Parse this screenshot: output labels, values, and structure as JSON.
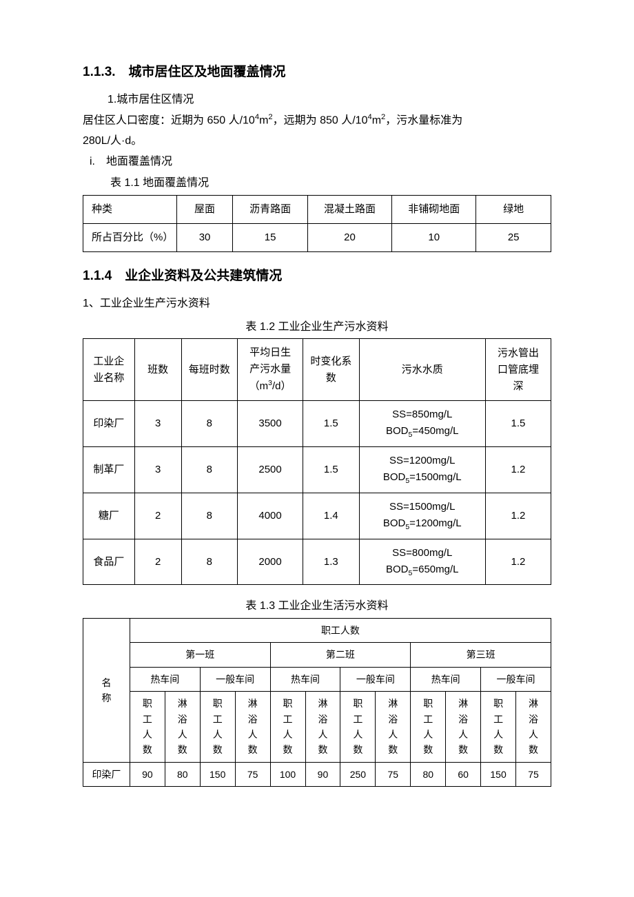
{
  "section113": {
    "heading": "1.1.3.　城市居住区及地面覆盖情况",
    "item1_label": "1.城市居住区情况",
    "density_line_a": "居住区人口密度：近期为 650 人/10",
    "density_sup1": "4",
    "density_unit1": "m",
    "density_sup2": "2",
    "density_line_b": "，远期为 850 人/10",
    "density_sup3": "4",
    "density_unit2": "m",
    "density_sup4": "2",
    "density_line_c": "，污水量标准为",
    "density_line2": "280L/人·d。",
    "item_i_label": "i.　地面覆盖情况",
    "table1_caption": "表 1.1  地面覆盖情况",
    "table1": {
      "header": [
        "种类",
        "屋面",
        "沥青路面",
        "混凝土路面",
        "非铺砌地面",
        "绿地"
      ],
      "row": [
        "所占百分比（%）",
        "30",
        "15",
        "20",
        "10",
        "25"
      ]
    }
  },
  "section114": {
    "heading": "1.1.4　业企业资料及公共建筑情况",
    "item1": "1、工业企业生产污水资料",
    "table2_caption": "表 1.2  工业企业生产污水资料",
    "table2": {
      "headers": {
        "c0a": "工业企",
        "c0b": "业名称",
        "c1": "班数",
        "c2": "每班时数",
        "c3a": "平均日生",
        "c3b": "产污水量",
        "c3c_a": "（m",
        "c3c_sup": "3",
        "c3c_b": "/d）",
        "c4a": "时变化系",
        "c4b": "数",
        "c5": "污水水质",
        "c6a": "污水管出",
        "c6b": "口管底埋",
        "c6c": "深"
      },
      "rows": [
        {
          "name": "印染厂",
          "shifts": "3",
          "hours": "8",
          "vol": "3500",
          "coef": "1.5",
          "q1": "SS=850mg/L",
          "q2a": "BOD",
          "q2sub": "5",
          "q2b": "=450mg/L",
          "depth": "1.5"
        },
        {
          "name": "制革厂",
          "shifts": "3",
          "hours": "8",
          "vol": "2500",
          "coef": "1.5",
          "q1": "SS=1200mg/L",
          "q2a": "BOD",
          "q2sub": "5",
          "q2b": "=1500mg/L",
          "depth": "1.2"
        },
        {
          "name": "糖厂",
          "shifts": "2",
          "hours": "8",
          "vol": "4000",
          "coef": "1.4",
          "q1": "SS=1500mg/L",
          "q2a": "BOD",
          "q2sub": "5",
          "q2b": "=1200mg/L",
          "depth": "1.2"
        },
        {
          "name": "食品厂",
          "shifts": "2",
          "hours": "8",
          "vol": "2000",
          "coef": "1.3",
          "q1": "SS=800mg/L",
          "q2a": "BOD",
          "q2sub": "5",
          "q2b": "=650mg/L",
          "depth": "1.2"
        }
      ]
    },
    "table3_caption": "表 1.3  工业企业生活污水资料",
    "table3": {
      "h_name_a": "名",
      "h_name_b": "称",
      "h_staff": "职工人数",
      "h_shift1": "第一班",
      "h_shift2": "第二班",
      "h_shift3": "第三班",
      "h_hot": "热车间",
      "h_cold": "一般车间",
      "h_worker_a": "职",
      "h_worker_b": "工",
      "h_worker_c": "人",
      "h_worker_d": "数",
      "h_shower_a": "淋",
      "h_shower_b": "浴",
      "h_shower_c": "人",
      "h_shower_d": "数",
      "row": {
        "name": "印染厂",
        "cells": [
          "90",
          "80",
          "150",
          "75",
          "100",
          "90",
          "250",
          "75",
          "80",
          "60",
          "150",
          "75"
        ]
      }
    }
  }
}
